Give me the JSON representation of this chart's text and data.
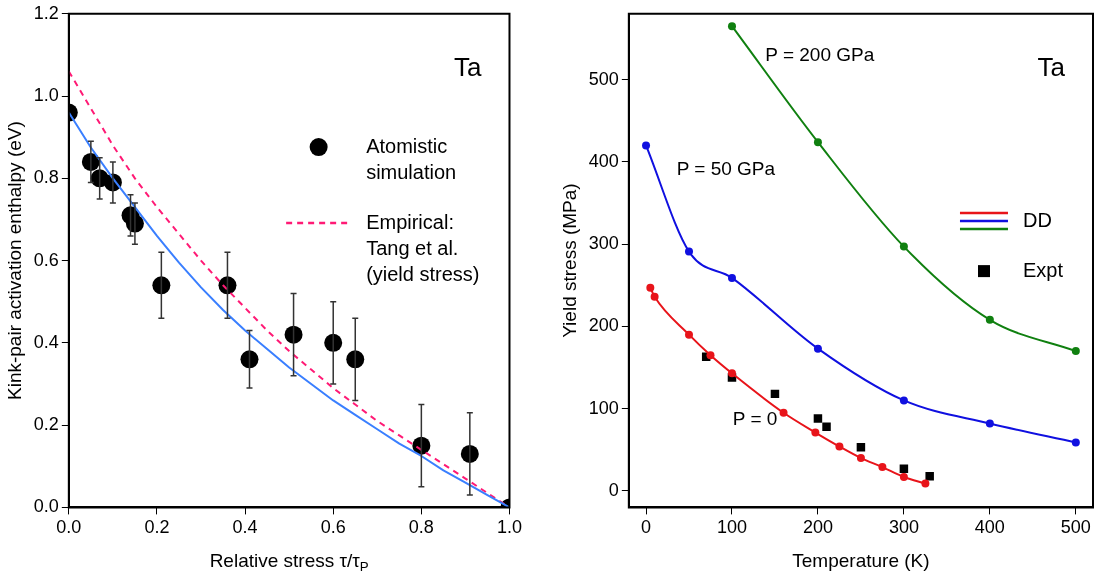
{
  "chart_data": [
    {
      "type": "scatter",
      "xlabel": "Relative stress τ/τ$_{P}$",
      "ylabel": "Kink-pair activation enthalpy (eV)",
      "xlim": [
        0,
        1
      ],
      "ylim": [
        0,
        1.2
      ],
      "xticks": [
        {
          "value": 0,
          "label": "0.0"
        },
        {
          "value": 0.2,
          "label": "0.2"
        },
        {
          "value": 0.4,
          "label": "0.4"
        },
        {
          "value": 0.6,
          "label": "0.6"
        },
        {
          "value": 0.8,
          "label": "0.8"
        },
        {
          "value": 1,
          "label": "1.0"
        }
      ],
      "yticks": [
        {
          "value": 0,
          "label": "0.0"
        },
        {
          "value": 0.2,
          "label": "0.2"
        },
        {
          "value": 0.4,
          "label": "0.4"
        },
        {
          "value": 0.6,
          "label": "0.6"
        },
        {
          "value": 0.8,
          "label": "0.8"
        },
        {
          "value": 1,
          "label": "1.0"
        },
        {
          "value": 1.2,
          "label": "1.2"
        }
      ],
      "legend": "top right",
      "annotations": [
        "Ta"
      ],
      "series": [
        {
          "name": "Atomistic simulation",
          "type": "scatter",
          "marker": "circle",
          "color": "#000000",
          "x": [
            0,
            0.05,
            0.07,
            0.1,
            0.14,
            0.15,
            0.21,
            0.36,
            0.41,
            0.51,
            0.6,
            0.65,
            0.8,
            0.91,
            1
          ],
          "values": [
            0.96,
            0.84,
            0.8,
            0.79,
            0.71,
            0.69,
            0.54,
            0.54,
            0.36,
            0.42,
            0.4,
            0.36,
            0.15,
            0.13,
            0
          ],
          "errors": [
            null,
            0.05,
            0.05,
            0.05,
            0.05,
            0.05,
            0.08,
            0.08,
            0.07,
            0.1,
            0.1,
            0.1,
            0.1,
            0.1,
            null
          ]
        },
        {
          "type": "line",
          "marker": "none",
          "line_style": "solid",
          "color": "#3a7fff",
          "x": [
            0,
            0.05,
            0.1,
            0.15,
            0.2,
            0.25,
            0.3,
            0.35,
            0.4,
            0.45,
            0.5,
            0.55,
            0.6,
            0.65,
            0.7,
            0.75,
            0.8,
            0.85,
            0.9,
            0.95,
            1
          ],
          "values": [
            0.96,
            0.875,
            0.8,
            0.73,
            0.66,
            0.595,
            0.535,
            0.48,
            0.43,
            0.385,
            0.34,
            0.3,
            0.26,
            0.225,
            0.19,
            0.155,
            0.125,
            0.09,
            0.06,
            0.03,
            0
          ]
        },
        {
          "name": "Empirical: Tang et al. (yield stress)",
          "type": "line",
          "marker": "none",
          "line_style": "dashed",
          "color": "#ff1a75",
          "x": [
            0,
            0.05,
            0.1,
            0.15,
            0.2,
            0.25,
            0.3,
            0.35,
            0.4,
            0.45,
            0.5,
            0.55,
            0.6,
            0.65,
            0.7,
            0.75,
            0.8,
            0.85,
            0.9,
            0.95,
            1
          ],
          "values": [
            1.06,
            0.97,
            0.88,
            0.8,
            0.73,
            0.665,
            0.6,
            0.54,
            0.485,
            0.43,
            0.38,
            0.335,
            0.29,
            0.25,
            0.21,
            0.175,
            0.14,
            0.105,
            0.07,
            0.035,
            0
          ]
        }
      ]
    },
    {
      "type": "line",
      "xlabel": "Temperature (K)",
      "ylabel": "Yield stress (MPa)",
      "xlim": [
        -20,
        520
      ],
      "ylim": [
        -20,
        580
      ],
      "xticks": [
        0,
        100,
        200,
        300,
        400,
        500
      ],
      "yticks": [
        0,
        100,
        200,
        300,
        400,
        500
      ],
      "legend": "right",
      "legend_title": "DD",
      "annotations": [
        "Ta"
      ],
      "series": [
        {
          "name": "P = 0",
          "type": "line",
          "marker": "circle",
          "line_style": "solid",
          "color": "#e8141a",
          "x": [
            5,
            10,
            50,
            75,
            100,
            160,
            197,
            225,
            250,
            275,
            300,
            325
          ],
          "values": [
            247,
            236,
            190,
            165,
            143,
            95,
            71,
            54,
            40,
            29,
            17,
            9
          ]
        },
        {
          "name": "P = 50 GPa",
          "type": "line",
          "marker": "circle",
          "line_style": "solid",
          "color": "#1010e0",
          "x": [
            0,
            50,
            100,
            200,
            300,
            400,
            500
          ],
          "values": [
            420,
            291,
            259,
            173,
            110,
            82,
            59
          ]
        },
        {
          "name": "P = 200 GPa",
          "type": "line",
          "marker": "circle",
          "line_style": "solid",
          "color": "#108010",
          "x": [
            100,
            200,
            300,
            400,
            500
          ],
          "values": [
            565,
            424,
            297,
            208,
            170
          ]
        },
        {
          "name": "Expt",
          "type": "scatter",
          "marker": "square",
          "color": "#000000",
          "x": [
            70,
            100,
            150,
            200,
            210,
            250,
            300,
            330
          ],
          "values": [
            163,
            138,
            118,
            88,
            78,
            53,
            27,
            18
          ]
        }
      ]
    }
  ]
}
